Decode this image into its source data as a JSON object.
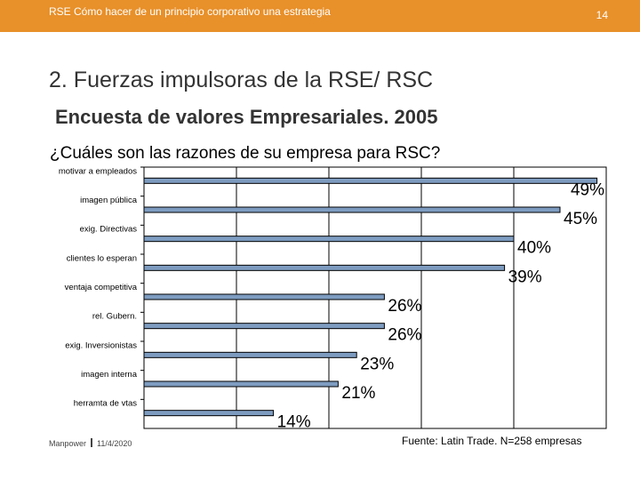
{
  "header": {
    "title": "RSE Cómo hacer de un principio corporativo una estrategia",
    "page_number": "14"
  },
  "slide": {
    "title": "2. Fuerzas impulsoras de la RSE/ RSC",
    "subtitle": "Encuesta de valores Empresariales. 2005",
    "question": "¿Cuáles son las razones de su empresa para RSC?"
  },
  "footer": {
    "brand": "Manpower",
    "date": "11/4/2020",
    "source": "Fuente: Latin Trade. N=258 empresas"
  },
  "colors": {
    "topbar": "#e8902a",
    "bar": "#7e9cc0"
  },
  "chart_data": {
    "type": "bar",
    "orientation": "horizontal",
    "title": "¿Cuáles son las razones de su empresa para RSC?",
    "categories": [
      "motivar a empleados",
      "imagen pública",
      "exig. Directivas",
      "clientes lo esperan",
      "ventaja competitiva",
      "rel. Gubern.",
      "exig. Inversionistas",
      "imagen interna",
      "herramta de vtas"
    ],
    "values": [
      49,
      45,
      40,
      39,
      26,
      26,
      23,
      21,
      14
    ],
    "labels": [
      "49%",
      "45%",
      "40%",
      "39%",
      "26%",
      "26%",
      "23%",
      "21%",
      "14%"
    ],
    "xlim": [
      0,
      50
    ],
    "grid": true,
    "xlabel": "",
    "ylabel": ""
  }
}
